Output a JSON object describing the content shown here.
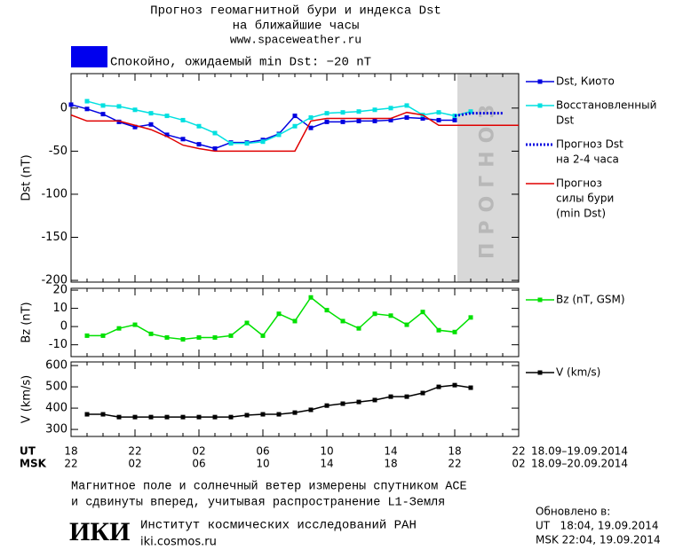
{
  "header": {
    "title": [
      "Прогноз геомагнитной бури и индекса Dst",
      "на ближайшие часы"
    ],
    "url": "www.spaceweather.ru"
  },
  "status": {
    "text": "Спокойно, ожидаемый min Dst: −20 nT",
    "color": "#0000ee"
  },
  "x_axis": {
    "ut_label": "UT",
    "categories": [
      "18",
      null,
      null,
      null,
      "22",
      null,
      null,
      null,
      "02",
      null,
      null,
      null,
      "06",
      null,
      null,
      null,
      "10",
      null,
      null,
      null,
      "14",
      null,
      null,
      null,
      "18",
      null,
      null,
      null,
      "22"
    ],
    "ut_range": "18.09–19.09.2014",
    "msk_label": "MSK",
    "msk_categories": [
      "22",
      null,
      null,
      null,
      "02",
      null,
      null,
      null,
      "06",
      null,
      null,
      null,
      "10",
      null,
      null,
      null,
      "14",
      null,
      null,
      null,
      "18",
      null,
      null,
      null,
      "22",
      null,
      null,
      null,
      "02"
    ],
    "msk_range": "18.09–20.09.2014"
  },
  "chart_data": [
    {
      "type": "line",
      "ylabel": "Dst (nT)",
      "ylim": [
        -202,
        40
      ],
      "yticks": [
        0,
        -50,
        -100,
        -150,
        -200
      ],
      "forecast_label": "ПРОГНОЗ",
      "series": [
        {
          "name": [
            "Dst, Киото"
          ],
          "color": "#0000e0",
          "marker": "square",
          "values": [
            4,
            -1,
            -7,
            -16,
            -22,
            -19,
            -31,
            -36,
            -42,
            -47,
            -40,
            -40,
            -37,
            -30,
            -9,
            -23,
            -16,
            -16,
            -15,
            -15,
            -14,
            -11,
            -12,
            -14,
            -14,
            null,
            null,
            null,
            null
          ]
        },
        {
          "name": [
            "Восстановленный",
            "Dst"
          ],
          "color": "#00e0e0",
          "marker": "square",
          "values": [
            null,
            8,
            3,
            2,
            -2,
            -6,
            -9,
            -14,
            -21,
            -29,
            -41,
            -41,
            -39,
            -31,
            -21,
            -11,
            -6,
            -5,
            -4,
            -2,
            0,
            3,
            -8,
            -5,
            -9,
            -4,
            null,
            null,
            null
          ]
        },
        {
          "name": [
            "Прогноз Dst",
            "на 2-4 часа"
          ],
          "color": "#0000e0",
          "style": "dotted",
          "values": [
            null,
            null,
            null,
            null,
            null,
            null,
            null,
            null,
            null,
            null,
            null,
            null,
            null,
            null,
            null,
            null,
            null,
            null,
            null,
            null,
            null,
            null,
            null,
            null,
            -9,
            -6,
            -6,
            -6,
            null
          ]
        },
        {
          "name": [
            "Прогноз",
            "силы бури",
            "(min Dst)"
          ],
          "color": "#e00000",
          "values": [
            -8,
            -15,
            -15,
            -15,
            -20,
            -25,
            -33,
            -43,
            -47,
            -50,
            -50,
            -50,
            -50,
            -50,
            -50,
            -15,
            -12,
            -12,
            -12,
            -12,
            -12,
            -5,
            -8,
            -20,
            -20,
            -20,
            -20,
            -20,
            -20
          ]
        }
      ]
    },
    {
      "type": "line",
      "ylabel": "Bz (nT)",
      "ylim": [
        -16.5,
        21
      ],
      "yticks": [
        20,
        10,
        0,
        -10
      ],
      "series": [
        {
          "name": [
            "Bz (nT, GSM)"
          ],
          "color": "#00e000",
          "marker": "square",
          "values": [
            null,
            -5,
            -5,
            -1,
            1,
            -4,
            -6,
            -7,
            -6,
            -6,
            -5,
            2,
            -5,
            7,
            3,
            16,
            9,
            3,
            -1,
            7,
            6,
            1,
            8,
            -2,
            -3,
            5,
            null,
            null,
            null
          ]
        }
      ]
    },
    {
      "type": "line",
      "ylabel": "V (km/s)",
      "ylim": [
        267,
        617
      ],
      "yticks": [
        600,
        500,
        400,
        300
      ],
      "series": [
        {
          "name": [
            "V (km/s)"
          ],
          "color": "#000000",
          "marker": "square",
          "values": [
            null,
            371,
            371,
            358,
            358,
            358,
            358,
            358,
            358,
            358,
            358,
            367,
            371,
            371,
            379,
            392,
            412,
            421,
            429,
            438,
            454,
            454,
            471,
            500,
            508,
            496,
            null,
            null,
            null
          ]
        }
      ]
    }
  ],
  "footer": {
    "note": [
      "Магнитное поле и солнечный ветер измерены спутником ACE",
      "и сдвинуты вперед, учитывая распространение L1-Земля"
    ],
    "logo": "ИКИ",
    "institute": "Институт космических исследований РАН",
    "site": "iki.cosmos.ru",
    "updated": [
      "Обновлено в:",
      "UT   18:04, 19.09.2014",
      "MSK 22:04, 19.09.2014"
    ]
  }
}
